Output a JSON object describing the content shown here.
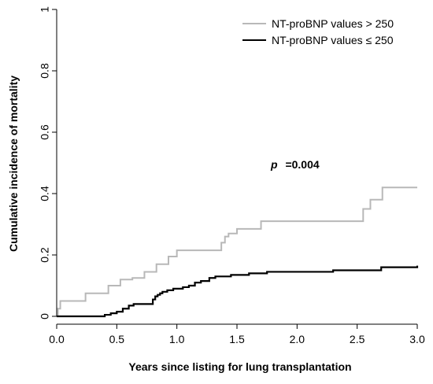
{
  "chart_data": {
    "type": "line",
    "step": true,
    "xlabel": "Years since listing for lung transplantation",
    "ylabel": "Cumulative incidence of mortality",
    "xlim": [
      0,
      3
    ],
    "ylim": [
      0,
      1
    ],
    "xticks": [
      "0.0",
      "0.5",
      "1.0",
      "1.5",
      "2.0",
      "2.5",
      "3.0"
    ],
    "yticks": [
      "0",
      "0.2",
      "0.4",
      "0.6",
      "0.8",
      "1"
    ],
    "legend_position": "top-right",
    "annotation": {
      "p_symbol": "p",
      "p_value": "=0.004"
    },
    "series": [
      {
        "name": "NT-proBNP values > 250",
        "color": "#b8b8b8",
        "x": [
          0,
          0.01,
          0.03,
          0.24,
          0.43,
          0.53,
          0.63,
          0.73,
          0.83,
          0.93,
          1.0,
          1.37,
          1.4,
          1.43,
          1.5,
          1.7,
          2.55,
          2.61,
          2.71,
          3.0
        ],
        "y": [
          0,
          0.025,
          0.05,
          0.075,
          0.1,
          0.12,
          0.125,
          0.145,
          0.17,
          0.195,
          0.215,
          0.24,
          0.26,
          0.27,
          0.285,
          0.31,
          0.35,
          0.38,
          0.42,
          0.42
        ]
      },
      {
        "name": "NT-proBNP values ≤ 250",
        "color": "#000000",
        "x": [
          0,
          0.4,
          0.45,
          0.5,
          0.55,
          0.6,
          0.64,
          0.8,
          0.82,
          0.84,
          0.86,
          0.88,
          0.92,
          0.97,
          1.05,
          1.1,
          1.15,
          1.2,
          1.27,
          1.32,
          1.45,
          1.6,
          1.75,
          2.3,
          2.7,
          3.0
        ],
        "y": [
          0,
          0.005,
          0.01,
          0.015,
          0.025,
          0.035,
          0.04,
          0.055,
          0.065,
          0.07,
          0.075,
          0.08,
          0.085,
          0.09,
          0.095,
          0.1,
          0.11,
          0.115,
          0.125,
          0.13,
          0.135,
          0.14,
          0.145,
          0.15,
          0.16,
          0.165
        ]
      }
    ]
  }
}
